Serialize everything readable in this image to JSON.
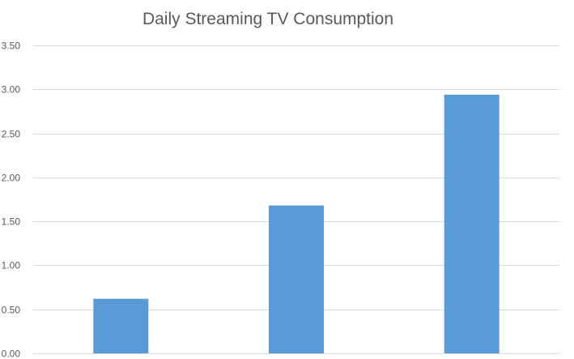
{
  "chart_data": {
    "type": "bar",
    "title": "Daily Streaming TV Consumption",
    "categories": [
      "",
      "",
      ""
    ],
    "values": [
      0.62,
      1.68,
      2.94
    ],
    "xlabel": "",
    "ylabel": "",
    "ylim": [
      0,
      3.5
    ],
    "y_ticks": [
      "0.00",
      "0.50",
      "1.00",
      "1.50",
      "2.00",
      "2.50",
      "3.00",
      "3.50"
    ],
    "grid": true,
    "legend": "none",
    "colors": {
      "bar": "#5b9bd5",
      "grid": "#d9d9d9",
      "text": "#595959"
    }
  }
}
